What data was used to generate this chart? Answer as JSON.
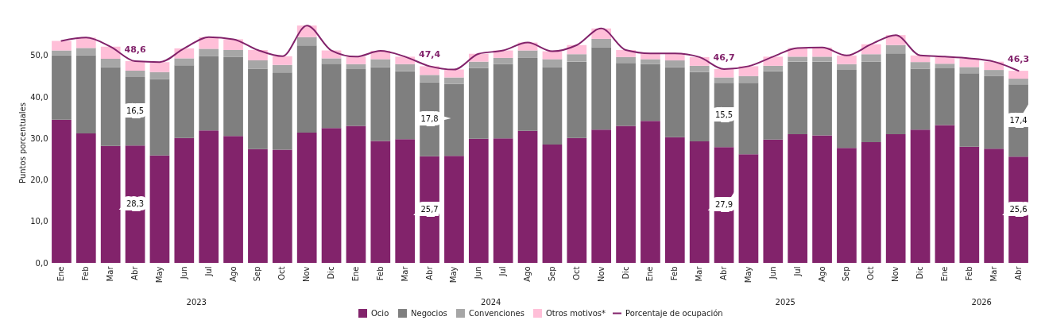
{
  "chart_data": {
    "type": "bar",
    "stacked": true,
    "legend": "bottom",
    "ylabel": "Puntos porcentuales",
    "ylim": [
      0,
      58
    ],
    "yticks": [
      {
        "value": 0,
        "label": "0,0"
      },
      {
        "value": 10,
        "label": "10,0"
      },
      {
        "value": 20,
        "label": "20,0"
      },
      {
        "value": 30,
        "label": "30,0"
      },
      {
        "value": 40,
        "label": "40,0"
      },
      {
        "value": 50,
        "label": "50,0"
      }
    ],
    "categories": [
      "Ene",
      "Feb",
      "Mar",
      "Abr",
      "May",
      "Jun",
      "Jul",
      "Ago",
      "Sep",
      "Oct",
      "Nov",
      "Dic",
      "Ene",
      "Feb",
      "Mar",
      "Abr",
      "May",
      "Jun",
      "Jul",
      "Ago",
      "Sep",
      "Oct",
      "Nov",
      "Dic",
      "Ene",
      "Feb",
      "Mar",
      "Abr",
      "May",
      "Jun",
      "Jul",
      "Ago",
      "Sep",
      "Oct",
      "Nov",
      "Dic",
      "Ene",
      "Feb",
      "Mar",
      "Abr"
    ],
    "annotations": [
      "2023",
      "2024",
      "2025",
      "2026"
    ],
    "series": [
      {
        "name": "Porcentaje de ocupación",
        "type": "line",
        "color": "#82236b",
        "values": [
          53.5,
          54.3,
          52.1,
          48.6,
          48.4,
          51.7,
          54.4,
          53.9,
          51.3,
          49.8,
          57.2,
          51.2,
          49.7,
          51.1,
          49.7,
          47.4,
          46.6,
          50.4,
          51.2,
          53.1,
          51.0,
          52.5,
          56.5,
          51.3,
          50.5,
          50.5,
          49.6,
          46.7,
          47.4,
          49.7,
          51.8,
          51.9,
          50.0,
          52.7,
          54.9,
          50.0,
          49.7,
          49.3,
          48.5,
          46.3
        ],
        "value_labels": [
          null,
          null,
          null,
          "48,6",
          null,
          null,
          null,
          null,
          null,
          null,
          null,
          null,
          null,
          null,
          null,
          "47,4",
          null,
          null,
          null,
          null,
          null,
          null,
          null,
          null,
          null,
          null,
          null,
          "46,7",
          null,
          null,
          null,
          null,
          null,
          null,
          null,
          null,
          null,
          null,
          null,
          "46,3"
        ]
      },
      {
        "name": "Ocio",
        "color": "#82236b",
        "values": [
          34.5,
          31.2,
          28.2,
          28.3,
          25.9,
          30.1,
          31.9,
          30.6,
          27.4,
          27.3,
          31.4,
          32.5,
          33.0,
          29.4,
          29.8,
          25.7,
          25.8,
          29.9,
          30.0,
          31.8,
          28.5,
          30.1,
          32.1,
          33.0,
          34.2,
          30.3,
          29.3,
          27.9,
          26.2,
          29.7,
          31.0,
          30.7,
          27.7,
          29.1,
          31.0,
          32.1,
          33.2,
          28.0,
          27.5,
          25.6
        ],
        "value_labels": [
          null,
          null,
          null,
          "28,3",
          null,
          null,
          null,
          null,
          null,
          null,
          null,
          null,
          null,
          null,
          null,
          "25,7",
          null,
          null,
          null,
          null,
          null,
          null,
          null,
          null,
          null,
          null,
          null,
          "27,9",
          null,
          null,
          null,
          null,
          null,
          null,
          null,
          null,
          null,
          null,
          null,
          "25,6"
        ]
      },
      {
        "name": "Negocios",
        "color": "#7f7f7f",
        "values": [
          15.5,
          18.8,
          19.0,
          16.5,
          18.4,
          17.5,
          17.9,
          19.0,
          19.4,
          18.6,
          21.0,
          15.5,
          13.7,
          17.8,
          16.4,
          17.8,
          17.3,
          17.1,
          17.9,
          17.6,
          18.6,
          18.4,
          19.8,
          15.2,
          13.7,
          16.9,
          16.7,
          15.5,
          17.2,
          16.5,
          17.5,
          17.8,
          18.8,
          19.4,
          19.5,
          14.7,
          13.7,
          17.7,
          17.5,
          17.4
        ],
        "value_labels": [
          null,
          null,
          null,
          "16,5",
          null,
          null,
          null,
          null,
          null,
          null,
          null,
          null,
          null,
          null,
          null,
          "17,8",
          null,
          null,
          null,
          null,
          null,
          null,
          null,
          null,
          null,
          null,
          null,
          "15,5",
          null,
          null,
          null,
          null,
          null,
          null,
          null,
          null,
          null,
          null,
          null,
          "17,4"
        ]
      },
      {
        "name": "Convenciones",
        "color": "#a6a6a6",
        "values": [
          1.2,
          1.8,
          2.0,
          1.5,
          1.7,
          1.7,
          1.8,
          1.7,
          2.0,
          1.8,
          2.0,
          1.3,
          1.2,
          1.9,
          1.7,
          1.8,
          1.6,
          1.5,
          1.5,
          1.8,
          2.0,
          1.8,
          2.1,
          1.4,
          1.2,
          1.6,
          1.5,
          1.3,
          1.6,
          1.3,
          1.2,
          1.2,
          1.4,
          1.8,
          2.0,
          1.6,
          1.1,
          1.5,
          1.5,
          1.4
        ]
      },
      {
        "name": "Otros motivos*",
        "color": "#ffbfd8",
        "values": [
          2.3,
          2.5,
          2.9,
          2.3,
          2.4,
          2.4,
          2.8,
          2.6,
          2.5,
          2.1,
          2.8,
          1.9,
          1.8,
          2.0,
          1.8,
          2.1,
          1.9,
          1.9,
          1.8,
          1.9,
          1.9,
          2.2,
          2.5,
          1.7,
          1.4,
          1.7,
          2.1,
          2.0,
          2.4,
          2.2,
          2.1,
          2.2,
          2.1,
          2.4,
          2.4,
          1.6,
          1.7,
          2.1,
          2.0,
          1.9
        ]
      }
    ]
  }
}
